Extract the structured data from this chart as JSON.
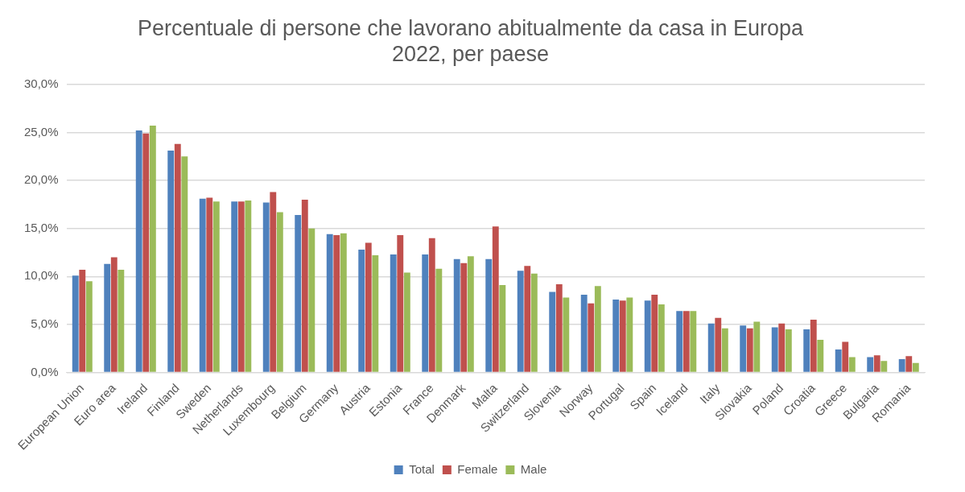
{
  "chart_data": {
    "type": "bar",
    "title": "Percentuale di persone che lavorano abitualmente da casa in Europa\n2022, per paese",
    "categories": [
      "European Union",
      "Euro area",
      "Ireland",
      "Finland",
      "Sweden",
      "Netherlands",
      "Luxembourg",
      "Belgium",
      "Germany",
      "Austria",
      "Estonia",
      "France",
      "Denmark",
      "Malta",
      "Switzerland",
      "Slovenia",
      "Norway",
      "Portugal",
      "Spain",
      "Iceland",
      "Italy",
      "Slovakia",
      "Poland",
      "Croatia",
      "Greece",
      "Bulgaria",
      "Romania"
    ],
    "series": [
      {
        "name": "Total",
        "color": "#4f81bd",
        "values": [
          10.1,
          11.3,
          25.2,
          23.1,
          18.1,
          17.8,
          17.7,
          16.4,
          14.4,
          12.8,
          12.3,
          12.3,
          11.8,
          11.8,
          10.6,
          8.4,
          8.1,
          7.6,
          7.5,
          6.4,
          5.1,
          4.9,
          4.7,
          4.5,
          2.4,
          1.6,
          1.4
        ]
      },
      {
        "name": "Female",
        "color": "#c0504d",
        "values": [
          10.7,
          12.0,
          24.9,
          23.8,
          18.2,
          17.8,
          18.8,
          18.0,
          14.3,
          13.5,
          14.3,
          14.0,
          11.4,
          15.2,
          11.1,
          9.2,
          7.2,
          7.5,
          8.1,
          6.4,
          5.7,
          4.6,
          5.1,
          5.5,
          3.2,
          1.8,
          1.7
        ]
      },
      {
        "name": "Male",
        "color": "#9bbb59",
        "values": [
          9.5,
          10.7,
          25.7,
          22.5,
          17.8,
          17.9,
          16.7,
          15.0,
          14.5,
          12.2,
          10.4,
          10.8,
          12.1,
          9.1,
          10.3,
          7.8,
          9.0,
          7.8,
          7.1,
          6.4,
          4.6,
          5.3,
          4.5,
          3.4,
          1.6,
          1.2,
          1.0
        ]
      }
    ],
    "ylim": [
      0,
      30
    ],
    "yticks": [
      {
        "value": 0,
        "label": "0,0%"
      },
      {
        "value": 5,
        "label": "5,0%"
      },
      {
        "value": 10,
        "label": "10,0%"
      },
      {
        "value": 15,
        "label": "15,0%"
      },
      {
        "value": 20,
        "label": "20,0%"
      },
      {
        "value": 25,
        "label": "25,0%"
      },
      {
        "value": 30,
        "label": "30,0%"
      }
    ],
    "grid": "y",
    "legend": "bottom"
  }
}
